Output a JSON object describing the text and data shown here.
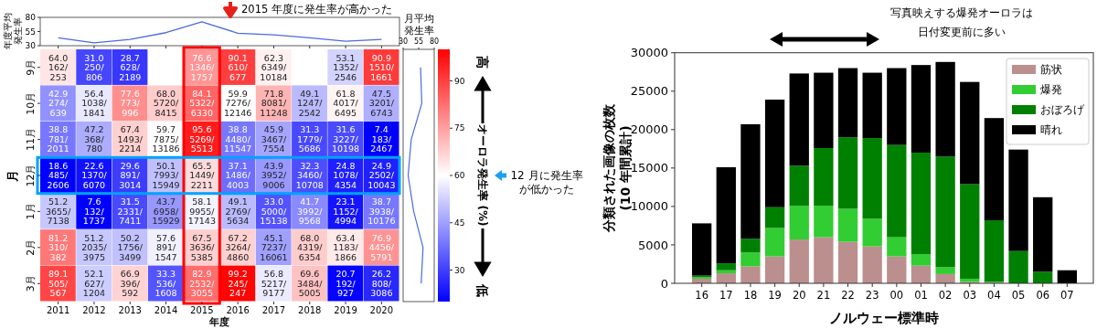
{
  "chart_data": [
    {
      "type": "line",
      "ylabel": "年度平均発生率",
      "categories": [
        "2011",
        "2012",
        "2013",
        "2014",
        "2015",
        "2016",
        "2017",
        "2018",
        "2019",
        "2020"
      ],
      "tick_labels": "y",
      "ylim": [
        30,
        80
      ],
      "yticks": [
        30,
        55,
        80
      ],
      "series": [
        {
          "color": "#4a6be0",
          "values": [
            44,
            35,
            41,
            53,
            72,
            52,
            49,
            44,
            38,
            41
          ]
        }
      ]
    },
    {
      "type": "heatmap",
      "xlabel": "年度",
      "ylabel": "月",
      "clabel": "オーロラ発生率 (%)",
      "categories": [
        "2011",
        "2012",
        "2013",
        "2014",
        "2015",
        "2016",
        "2017",
        "2018",
        "2019",
        "2020"
      ],
      "y_categories": [
        "9月",
        "10月",
        "11月",
        "12月",
        "1月",
        "2月",
        "3月"
      ],
      "cells": [
        [
          64.0,
          31.0,
          28.7,
          null,
          76.6,
          90.1,
          62.3,
          null,
          53.1,
          90.9
        ],
        [
          42.9,
          56.4,
          77.6,
          68.0,
          84.1,
          59.9,
          71.8,
          49.1,
          61.8,
          47.5
        ],
        [
          38.8,
          47.2,
          67.4,
          59.7,
          95.6,
          38.8,
          45.9,
          31.3,
          31.6,
          7.4
        ],
        [
          18.6,
          22.6,
          29.6,
          50.1,
          65.5,
          37.1,
          43.9,
          32.3,
          24.8,
          24.9
        ],
        [
          51.2,
          7.6,
          31.5,
          43.7,
          58.1,
          49.1,
          33.0,
          41.7,
          23.1,
          38.7
        ],
        [
          81.2,
          51.2,
          50.2,
          57.6,
          67.5,
          67.2,
          45.1,
          68.0,
          63.4,
          76.9
        ],
        [
          89.1,
          52.1,
          66.9,
          33.3,
          82.9,
          99.2,
          56.8,
          69.6,
          20.7,
          26.2
        ]
      ],
      "cell_labels": [
        [
          "64.0\n162/\n253",
          "31.0\n250/\n806",
          "28.7\n628/\n2189",
          null,
          "76.6\n1346/\n1757",
          "90.1\n610/\n677",
          "62.3\n6349/\n10184",
          null,
          "53.1\n1352/\n2546",
          "90.9\n1510/\n1661"
        ],
        [
          "42.9\n274/\n639",
          "56.4\n1038/\n1841",
          "77.6\n773/\n996",
          "68.0\n5720/\n8415",
          "84.1\n5322/\n6330",
          "59.9\n7276/\n12146",
          "71.8\n8081/\n11248",
          "49.1\n1247/\n2542",
          "61.8\n4017/\n6495",
          "47.5\n3201/\n6743"
        ],
        [
          "38.8\n781/\n2011",
          "47.2\n368/\n780",
          "67.4\n1493/\n2214",
          "59.7\n7875/\n13186",
          "95.6\n5269/\n5513",
          "38.8\n4480/\n11547",
          "45.9\n3467/\n7554",
          "31.3\n1779/\n5686",
          "31.6\n3227/\n10198",
          "7.4\n183/\n2467"
        ],
        [
          "18.6\n485/\n2606",
          "22.6\n1370/\n6070",
          "29.6\n891/\n3014",
          "50.1\n7993/\n15949",
          "65.5\n1449/\n2211",
          "37.1\n1486/\n4003",
          "43.9\n3952/\n9006",
          "32.3\n3460/\n10708",
          "24.8\n1078/\n4354",
          "24.9\n2502/\n10043"
        ],
        [
          "51.2\n3655/\n7138",
          "7.6\n132/\n1737",
          "31.5\n2331/\n7411",
          "43.7\n6958/\n15929",
          "58.1\n9955/\n17143",
          "49.1\n2769/\n5634",
          "33.0\n5000/\n15138",
          "41.7\n3992/\n9568",
          "23.1\n1152/\n4994",
          "38.7\n3938/\n10176"
        ],
        [
          "81.2\n310/\n382",
          "51.2\n2035/\n3975",
          "50.2\n1756/\n3499",
          "57.6\n891/\n1547",
          "67.5\n3636/\n5385",
          "67.2\n3264/\n4860",
          "45.1\n7237/\n16061",
          "68.0\n4319/\n6354",
          "63.4\n1183/\n1866",
          "76.9\n4456/\n5791"
        ],
        [
          "89.1\n505/\n567",
          "52.1\n627/\n1204",
          "66.9\n396/\n592",
          "33.3\n536/\n1608",
          "82.9\n2532/\n3055",
          "99.2\n245/\n247",
          "56.8\n5217/\n9177",
          "69.6\n3484/\n5005",
          "20.7\n192/\n927",
          "26.2\n808/\n3086"
        ]
      ],
      "clim": [
        20,
        100
      ],
      "cticks": [
        30,
        45,
        60,
        75,
        90
      ],
      "annotations": [
        "2015 年度に発生率が高かった",
        "12 月に発生率が低かった",
        "高",
        "低"
      ]
    },
    {
      "type": "line",
      "orientation": "horizontal",
      "xlabel": "月平均発生率",
      "categories": [
        "9月",
        "10月",
        "11月",
        "12月",
        "1月",
        "2月",
        "3月"
      ],
      "tick_labels": "x",
      "xlim": [
        30,
        80
      ],
      "xticks": [
        30,
        55,
        80
      ],
      "series": [
        {
          "color": "#4a6be0",
          "values": [
            58,
            60,
            43,
            38,
            47,
            62,
            59
          ]
        }
      ]
    },
    {
      "type": "bar",
      "stacked": true,
      "xlabel": "ノルウェー標準時",
      "ylabel": "分類された画像の枚数\n(10 年間累計)",
      "categories": [
        "16",
        "17",
        "18",
        "19",
        "20",
        "21",
        "22",
        "23",
        "00",
        "01",
        "02",
        "03",
        "04",
        "05",
        "06",
        "07"
      ],
      "ylim": [
        0,
        30000
      ],
      "yticks": [
        0,
        5000,
        10000,
        15000,
        20000,
        25000,
        30000
      ],
      "legend": "top right",
      "annotations": [
        "写真映えする爆発オーロラは日付変更前に多い"
      ],
      "series": [
        {
          "name": "筋状",
          "color": "#bc8f8f",
          "values": [
            600,
            1300,
            2200,
            3500,
            5700,
            6000,
            5400,
            4800,
            3500,
            2300,
            1200,
            200,
            100,
            0,
            0,
            0
          ]
        },
        {
          "name": "爆発",
          "color": "#32cd32",
          "values": [
            200,
            400,
            1800,
            3700,
            4400,
            4100,
            4300,
            3600,
            2500,
            1500,
            900,
            400,
            100,
            0,
            0,
            0
          ]
        },
        {
          "name": "おぼろげ",
          "color": "#008000",
          "values": [
            200,
            900,
            1800,
            2700,
            5200,
            7500,
            9300,
            10500,
            12000,
            13200,
            14400,
            12300,
            8000,
            4200,
            1500,
            0
          ]
        },
        {
          "name": "晴れ",
          "color": "#000000",
          "values": [
            6800,
            12500,
            14900,
            14000,
            12000,
            9800,
            9000,
            8500,
            10000,
            11400,
            12300,
            13300,
            13300,
            13200,
            9700,
            1700
          ]
        }
      ]
    }
  ]
}
